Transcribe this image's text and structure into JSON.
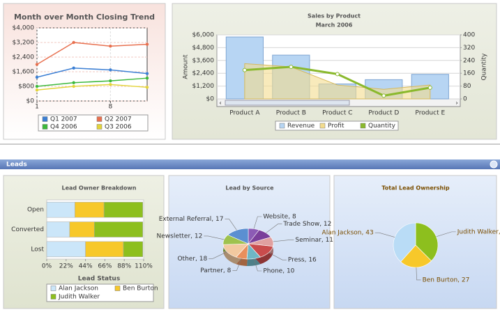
{
  "section": {
    "title": "Leads"
  },
  "chart_data": [
    {
      "type": "line",
      "title": "Month over Month Closing Trend",
      "x": [
        1,
        4.5,
        8,
        11.5
      ],
      "xlim": [
        1,
        11.5
      ],
      "xticks": [
        1,
        8
      ],
      "ylim": [
        0,
        4000
      ],
      "yticks": [
        {
          "value": 0,
          "label": "$0"
        },
        {
          "value": 800,
          "label": "$800"
        },
        {
          "value": 1600,
          "label": "$1,600"
        },
        {
          "value": 2400,
          "label": "$2,400"
        },
        {
          "value": 3200,
          "label": "$3,200"
        },
        {
          "value": 4000,
          "label": "$4,000"
        }
      ],
      "grid": true,
      "series": [
        {
          "name": "Q1 2007",
          "color": "#3b7fd4",
          "values": [
            1300,
            1800,
            1700,
            1500
          ]
        },
        {
          "name": "Q2 2007",
          "color": "#e8704f",
          "values": [
            2000,
            3200,
            3000,
            3100
          ]
        },
        {
          "name": "Q4 2006",
          "color": "#3cb93c",
          "values": [
            800,
            1000,
            1100,
            1250
          ]
        },
        {
          "name": "Q3 2006",
          "color": "#e3d43a",
          "values": [
            600,
            800,
            900,
            750
          ]
        }
      ]
    },
    {
      "type": "combo",
      "title": "Sales by Product",
      "subtitle": "March 2006",
      "ylabel": "Amount",
      "y2label": "Quantity",
      "categories": [
        "Product A",
        "Product B",
        "Product C",
        "Product D",
        "Product E"
      ],
      "ylim": [
        0,
        6000
      ],
      "yticks": [
        {
          "value": 0,
          "label": "$0"
        },
        {
          "value": 1200,
          "label": "$1,200"
        },
        {
          "value": 2400,
          "label": "$2,400"
        },
        {
          "value": 3600,
          "label": "$3,600"
        },
        {
          "value": 4800,
          "label": "$4,800"
        },
        {
          "value": 6000,
          "label": "$6,000"
        }
      ],
      "y2lim": [
        0,
        400
      ],
      "y2ticks": [
        0,
        80,
        160,
        240,
        320,
        400
      ],
      "grid": true,
      "series": [
        {
          "name": "Revenue",
          "type": "bar",
          "color": "#b7d5f3",
          "values": [
            5800,
            4100,
            1400,
            1800,
            2300
          ]
        },
        {
          "name": "Profit",
          "type": "area",
          "color": "#f3dc8e",
          "values": [
            3300,
            3000,
            1300,
            900,
            1300
          ]
        },
        {
          "name": "Quantity",
          "type": "line",
          "axis": "y2",
          "color": "#8ab92d",
          "values": [
            180,
            200,
            155,
            20,
            70
          ]
        }
      ]
    },
    {
      "type": "stacked_bar",
      "title": "Lead Owner Breakdown",
      "axis_title": "Lead Status",
      "categories": [
        "Open",
        "Converted",
        "Lost"
      ],
      "xlim": [
        0,
        110
      ],
      "xticks": [
        {
          "value": 0,
          "label": "0%"
        },
        {
          "value": 22,
          "label": "22%"
        },
        {
          "value": 44,
          "label": "44%"
        },
        {
          "value": 66,
          "label": "66%"
        },
        {
          "value": 88,
          "label": "88%"
        },
        {
          "value": 110,
          "label": "110%"
        }
      ],
      "series": [
        {
          "name": "Alan Jackson",
          "color": "#cbe6f9",
          "values": [
            32,
            26,
            44
          ]
        },
        {
          "name": "Ben Burton",
          "color": "#f7c82a",
          "values": [
            33,
            28,
            43
          ]
        },
        {
          "name": "Judith Walker",
          "color": "#8dbf1e",
          "values": [
            44,
            55,
            22
          ]
        }
      ]
    },
    {
      "type": "pie",
      "title": "Lead by Source",
      "three_d": true,
      "values": [
        8,
        12,
        11,
        16,
        10,
        8,
        18,
        12,
        17
      ],
      "value_labels": [
        "Website, 8",
        "Trade Show, 12",
        "Seminar, 11",
        "Press, 16",
        "Phone, 10",
        "Partner, 8",
        "Other, 18",
        "Newsletter, 12",
        "External Referral, 17"
      ],
      "colors": [
        "#8c5bb5",
        "#7a3f9a",
        "#e0a0a0",
        "#c94c4c",
        "#6fb7c4",
        "#e88f5c",
        "#f2c9a0",
        "#9ec24e",
        "#5b8fd1"
      ]
    },
    {
      "type": "pie",
      "title": "Total Lead Ownership",
      "three_d": false,
      "values": [
        42,
        27,
        43
      ],
      "value_labels": [
        "Judith Walker, 42",
        "Ben Burton, 27",
        "Alan Jackson, 43"
      ],
      "colors": [
        "#8dbf1e",
        "#f7c82a",
        "#b9dcf6"
      ]
    }
  ]
}
